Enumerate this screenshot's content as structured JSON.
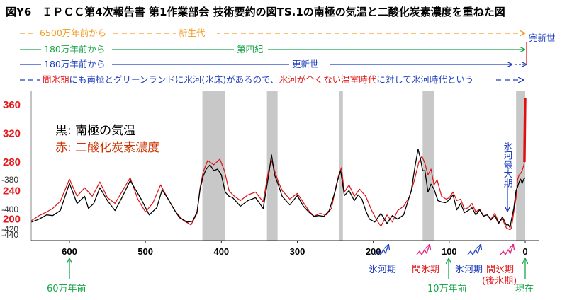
{
  "title": "図Y6　ＩＰＣＣ第4次報告書 第1作業部会 技術要約の図TS.1の南極の気温と二酸化炭素濃度を重ねた図",
  "eras": [
    {
      "start": "6500万年前から",
      "name": "新生代",
      "color": "#f39a1d"
    },
    {
      "start": "180万年前から",
      "name": "第四紀",
      "color": "#1aa64a"
    },
    {
      "start": "180万年前から",
      "name": "更新世",
      "color": "#1f3fbf"
    }
  ],
  "holocene_label": "完新世",
  "note": {
    "part1": "間氷期",
    "part2": "にも南極とグリーンランドに",
    "part3": "氷河(氷床)",
    "part4": "があるので、",
    "part5": "氷河が全くない温室時代",
    "part6": "に対して",
    "part7": "氷河時代",
    "part8": "という"
  },
  "colors": {
    "temperature": "#000000",
    "co2": "#e01010",
    "red_text": "#e41a1c",
    "blue_text": "#1f3fbf",
    "green_text": "#1aa64a",
    "band": "#c8c8c8"
  },
  "legend": {
    "temp": "黒: 南極の気温",
    "co2": "赤: 二酸化炭素濃度"
  },
  "annotations": {
    "last_glacial_max": "氷河最大期",
    "glacial": "氷河期",
    "interglacial": "間氷期",
    "glacial2": "氷河期",
    "interglacial2": "間氷期",
    "post_glacial": "(後氷期)",
    "present": "現在",
    "ky600": "60万年前",
    "ky100": "10万年前"
  },
  "chart_data": {
    "type": "line",
    "xlabel": "",
    "ylabel": "",
    "x_ticks": [
      "600",
      "500",
      "400",
      "300",
      "200",
      "100",
      "0"
    ],
    "y_ticks_co2": [
      "360",
      "320",
      "280",
      "240",
      "200"
    ],
    "y_ticks_temp": [
      "-380",
      "-400",
      "-420",
      "-440"
    ],
    "xlim": [
      650,
      0
    ],
    "ylim_co2": [
      170,
      380
    ],
    "interglacial_bands_ka": [
      [
        425,
        395
      ],
      [
        340,
        326
      ],
      [
        245,
        240
      ],
      [
        135,
        120
      ],
      [
        12,
        0
      ]
    ],
    "series": [
      {
        "name": "黒: 南極の気温",
        "x": [
          650,
          640,
          630,
          622,
          612,
          600,
          590,
          580,
          575,
          568,
          560,
          550,
          540,
          530,
          520,
          505,
          495,
          485,
          478,
          470,
          462,
          455,
          445,
          438,
          432,
          428,
          424,
          420,
          415,
          410,
          405,
          400,
          395,
          390,
          385,
          375,
          365,
          355,
          345,
          338,
          334,
          330,
          325,
          320,
          310,
          300,
          292,
          285,
          278,
          272,
          265,
          258,
          250,
          247,
          243,
          238,
          232,
          225,
          220,
          215,
          210,
          205,
          198,
          190,
          182,
          175,
          168,
          160,
          150,
          145,
          141,
          138,
          135,
          132,
          128,
          124,
          120,
          115,
          110,
          105,
          100,
          95,
          90,
          85,
          80,
          75,
          70,
          65,
          60,
          55,
          50,
          45,
          40,
          35,
          30,
          25,
          22,
          20,
          18,
          15,
          12,
          10,
          8,
          6,
          4,
          2,
          0
        ],
        "values": [
          196,
          200,
          206,
          205,
          212,
          250,
          222,
          232,
          215,
          222,
          244,
          226,
          212,
          232,
          254,
          227,
          206,
          216,
          241,
          228,
          213,
          202,
          196,
          197,
          210,
          242,
          260,
          270,
          276,
          268,
          270,
          262,
          238,
          232,
          230,
          218,
          226,
          230,
          215,
          260,
          290,
          262,
          248,
          232,
          220,
          233,
          218,
          210,
          204,
          205,
          204,
          212,
          240,
          254,
          268,
          233,
          240,
          226,
          234,
          228,
          212,
          200,
          196,
          208,
          194,
          205,
          200,
          206,
          240,
          274,
          298,
          285,
          268,
          268,
          238,
          249,
          242,
          226,
          224,
          223,
          227,
          234,
          213,
          222,
          209,
          212,
          216,
          206,
          213,
          204,
          206,
          199,
          205,
          194,
          203,
          192,
          192,
          188,
          200,
          215,
          240,
          245,
          252,
          256,
          250,
          256,
          258
        ]
      },
      {
        "name": "赤: 二酸化炭素濃度",
        "x": [
          650,
          640,
          630,
          622,
          612,
          600,
          590,
          580,
          570,
          560,
          550,
          540,
          530,
          520,
          510,
          500,
          490,
          480,
          470,
          460,
          450,
          440,
          432,
          428,
          424,
          418,
          410,
          402,
          396,
          390,
          385,
          375,
          365,
          355,
          345,
          338,
          334,
          330,
          325,
          320,
          310,
          300,
          290,
          285,
          278,
          270,
          262,
          255,
          250,
          246,
          242,
          238,
          232,
          225,
          218,
          210,
          202,
          195,
          190,
          182,
          175,
          168,
          160,
          152,
          146,
          140,
          136,
          132,
          128,
          124,
          120,
          116,
          110,
          104,
          100,
          95,
          90,
          85,
          80,
          75,
          70,
          65,
          60,
          55,
          50,
          45,
          40,
          35,
          30,
          25,
          20,
          18,
          15,
          12,
          10,
          8,
          6,
          4,
          2,
          1,
          0
        ],
        "values": [
          198,
          205,
          210,
          215,
          225,
          256,
          232,
          244,
          232,
          252,
          230,
          222,
          240,
          258,
          228,
          210,
          223,
          248,
          228,
          210,
          198,
          192,
          208,
          244,
          266,
          282,
          276,
          284,
          268,
          240,
          234,
          226,
          234,
          238,
          224,
          268,
          282,
          268,
          252,
          240,
          228,
          236,
          220,
          212,
          204,
          208,
          206,
          215,
          242,
          260,
          272,
          238,
          248,
          232,
          242,
          232,
          212,
          198,
          190,
          206,
          196,
          212,
          218,
          232,
          254,
          280,
          288,
          278,
          262,
          270,
          248,
          255,
          232,
          228,
          230,
          238,
          226,
          228,
          214,
          216,
          222,
          210,
          214,
          205,
          206,
          200,
          208,
          196,
          200,
          188,
          185,
          188,
          210,
          230,
          255,
          262,
          264,
          268,
          275,
          280,
          370
        ]
      }
    ]
  }
}
